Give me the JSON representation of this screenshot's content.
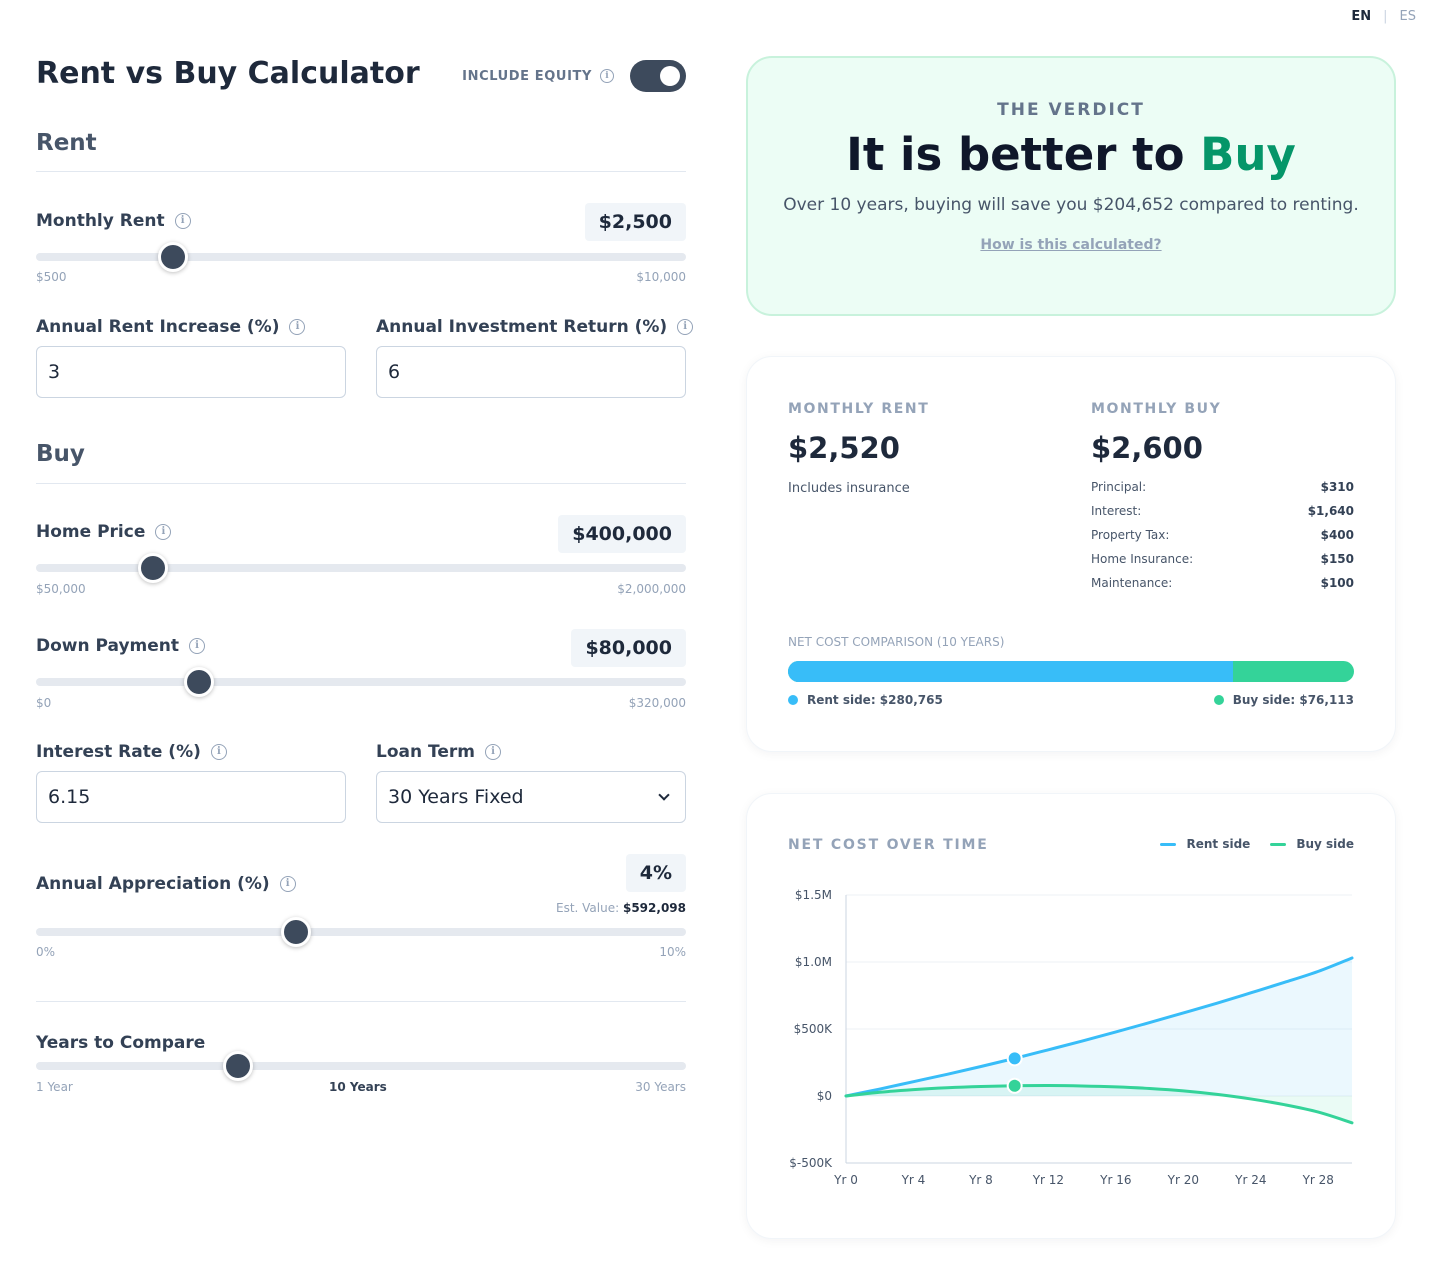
{
  "lang": {
    "en": "EN",
    "separator": "|",
    "es": "ES"
  },
  "header": {
    "title": "Rent vs Buy Calculator",
    "equity_label": "INCLUDE EQUITY",
    "equity_on": true
  },
  "rent": {
    "section_title": "Rent",
    "monthly_rent": {
      "label": "Monthly Rent",
      "value": "$2,500",
      "min": "$500",
      "max": "$10,000"
    },
    "rent_increase": {
      "label": "Annual Rent Increase (%)",
      "value": "3"
    },
    "investment_return": {
      "label": "Annual Investment Return (%)",
      "value": "6"
    }
  },
  "buy": {
    "section_title": "Buy",
    "home_price": {
      "label": "Home Price",
      "value": "$400,000",
      "min": "$50,000",
      "max": "$2,000,000"
    },
    "down_payment": {
      "label": "Down Payment",
      "value": "$80,000",
      "min": "$0",
      "max": "$320,000"
    },
    "interest_rate": {
      "label": "Interest Rate (%)",
      "value": "6.15"
    },
    "loan_term": {
      "label": "Loan Term",
      "value": "30 Years Fixed"
    },
    "appreciation": {
      "label": "Annual Appreciation (%)",
      "value": "4%",
      "est_label": "Est. Value:",
      "est_value": "$592,098",
      "min": "0%",
      "max": "10%"
    }
  },
  "years": {
    "label": "Years to Compare",
    "min": "1 Year",
    "current": "10 Years",
    "max": "30 Years"
  },
  "verdict": {
    "kicker": "THE VERDICT",
    "headline_prefix": "It is better to",
    "headline_choice": "Buy",
    "text": "Over 10 years, buying will save you $204,652 compared to renting.",
    "link": "How is this calculated?"
  },
  "monthly": {
    "rent_kicker": "MONTHLY RENT",
    "rent_amount": "$2,520",
    "rent_note": "Includes insurance",
    "buy_kicker": "MONTHLY BUY",
    "buy_amount": "$2,600",
    "breakdown": [
      {
        "label": "Principal:",
        "value": "$310"
      },
      {
        "label": "Interest:",
        "value": "$1,640"
      },
      {
        "label": "Property Tax:",
        "value": "$400"
      },
      {
        "label": "Home Insurance:",
        "value": "$150"
      },
      {
        "label": "Maintenance:",
        "value": "$100"
      }
    ],
    "net_kicker": "NET COST COMPARISON (10 YEARS)",
    "rent_side": "Rent side: $280,765",
    "buy_side": "Buy side: $76,113",
    "rent_share": 0.787
  },
  "colors": {
    "rent": "#38bdf8",
    "buy": "#34d399",
    "accent": "#059669",
    "slider": "#3d4a5c"
  },
  "sliders": {
    "monthly_rent": 0.2105,
    "home_price": 0.1795,
    "down_payment": 0.25,
    "appreciation": 0.4,
    "years": 0.3103
  },
  "chart_data": {
    "type": "line",
    "title": "NET COST OVER TIME",
    "x": [
      0,
      2,
      4,
      6,
      8,
      10,
      12,
      14,
      16,
      18,
      20,
      22,
      24,
      26,
      28,
      30
    ],
    "xticks": [
      0,
      4,
      8,
      12,
      16,
      20,
      24,
      28
    ],
    "xtick_labels": [
      "Yr 0",
      "Yr 4",
      "Yr 8",
      "Yr 12",
      "Yr 16",
      "Yr 20",
      "Yr 24",
      "Yr 28"
    ],
    "xlim": [
      0,
      30
    ],
    "ylim": [
      -500000,
      1500000
    ],
    "yticks": [
      -500000,
      0,
      500000,
      1000000,
      1500000
    ],
    "ytick_labels": [
      "$-500K",
      "$0",
      "$500K",
      "$1.0M",
      "$1.5M"
    ],
    "series": [
      {
        "name": "Rent side",
        "values": [
          0,
          52000,
          107000,
          162000,
          220000,
          280765,
          345000,
          410000,
          478000,
          548000,
          620000,
          693000,
          770000,
          848000,
          930000,
          1030000
        ]
      },
      {
        "name": "Buy side",
        "values": [
          0,
          28000,
          48000,
          62000,
          71000,
          76113,
          78000,
          75000,
          68000,
          56000,
          38000,
          12000,
          -22000,
          -65000,
          -120000,
          -200000
        ]
      }
    ],
    "markers": [
      {
        "x": 10,
        "rent": 280765,
        "buy": 76113
      }
    ],
    "grid": true,
    "legend": "top-right"
  }
}
